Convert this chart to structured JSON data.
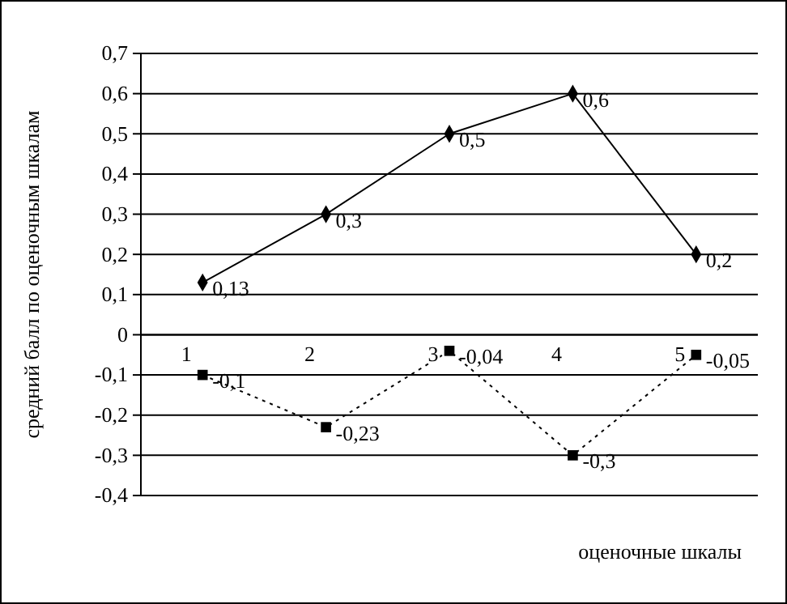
{
  "chart_data": {
    "type": "line",
    "xlabel": "оценочные шкалы",
    "ylabel": "средний балл по оценочным шкалам",
    "categories": [
      "1",
      "2",
      "3",
      "4",
      "5"
    ],
    "series": [
      {
        "color": "#000000",
        "marker": "diamond",
        "line_style": "solid",
        "values": [
          0.13,
          0.3,
          0.5,
          0.6,
          0.2
        ],
        "value_labels": [
          "0,13",
          "0,3",
          "0,5",
          "0,6",
          "0,2"
        ]
      },
      {
        "color": "#000000",
        "marker": "square",
        "line_style": "dotted",
        "values": [
          -0.1,
          -0.23,
          -0.04,
          -0.3,
          -0.05
        ],
        "value_labels": [
          "-0,1",
          "-0,23",
          "-0,04",
          "-0,3",
          "-0,05"
        ]
      }
    ],
    "ylim": [
      -0.4,
      0.7
    ],
    "yticks": [
      {
        "value": -0.4,
        "label": "-0,4"
      },
      {
        "value": -0.3,
        "label": "-0,3"
      },
      {
        "value": -0.2,
        "label": "-0,2"
      },
      {
        "value": -0.1,
        "label": "-0,1"
      },
      {
        "value": 0,
        "label": "0"
      },
      {
        "value": 0.1,
        "label": "0,1"
      },
      {
        "value": 0.2,
        "label": "0,2"
      },
      {
        "value": 0.3,
        "label": "0,3"
      },
      {
        "value": 0.4,
        "label": "0,4"
      },
      {
        "value": 0.5,
        "label": "0,5"
      },
      {
        "value": 0.6,
        "label": "0,6"
      },
      {
        "value": 0.7,
        "label": "0,7"
      }
    ],
    "grid": "y"
  }
}
